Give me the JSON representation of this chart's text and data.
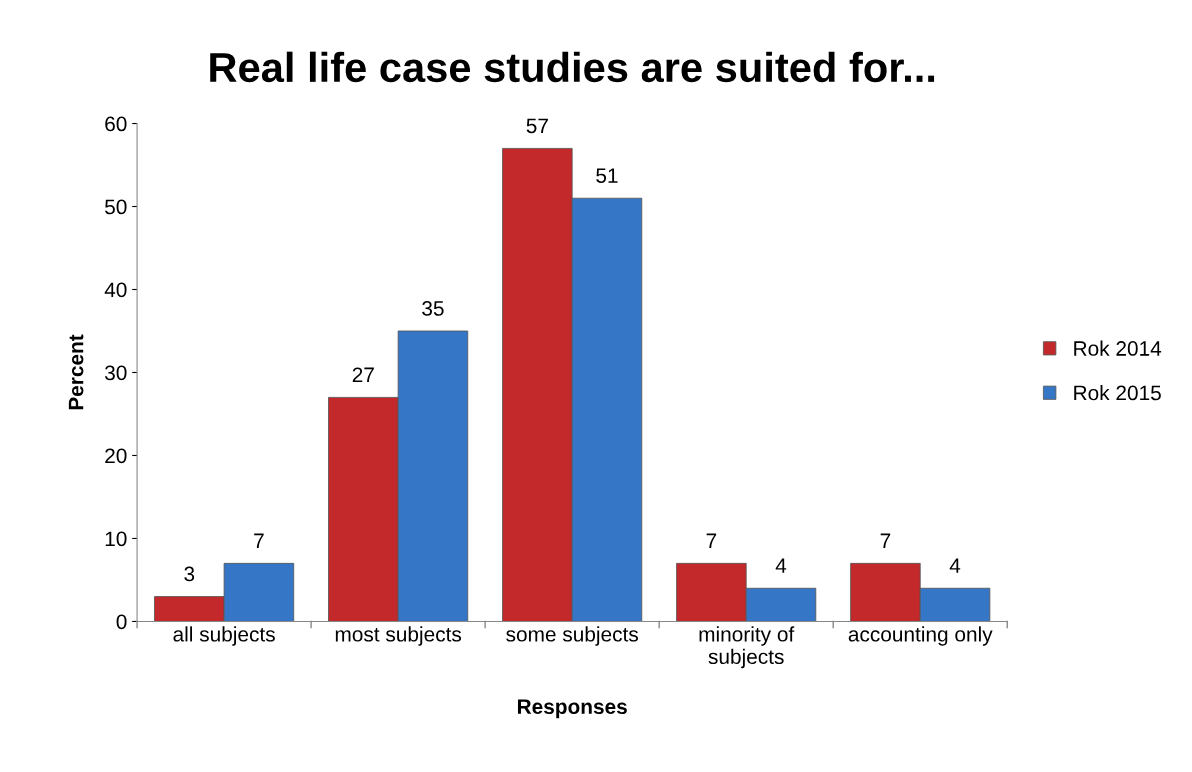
{
  "chart_data": {
    "type": "bar",
    "title": "Real life case studies are suited for...",
    "xlabel": "Responses",
    "ylabel": "Percent",
    "categories": [
      "all subjects",
      "most subjects",
      "some subjects",
      "minority of\nsubjects",
      "accounting only"
    ],
    "series": [
      {
        "name": "Rok 2014",
        "color": "#c3282a",
        "values": [
          3,
          27,
          57,
          7,
          7
        ]
      },
      {
        "name": "Rok 2015",
        "color": "#3676c6",
        "values": [
          7,
          35,
          51,
          4,
          4
        ]
      }
    ],
    "ylim": [
      0,
      60
    ],
    "yticks": [
      0,
      10,
      20,
      30,
      40,
      50,
      60
    ],
    "grid": false,
    "legend": "right",
    "data_labels": true
  }
}
